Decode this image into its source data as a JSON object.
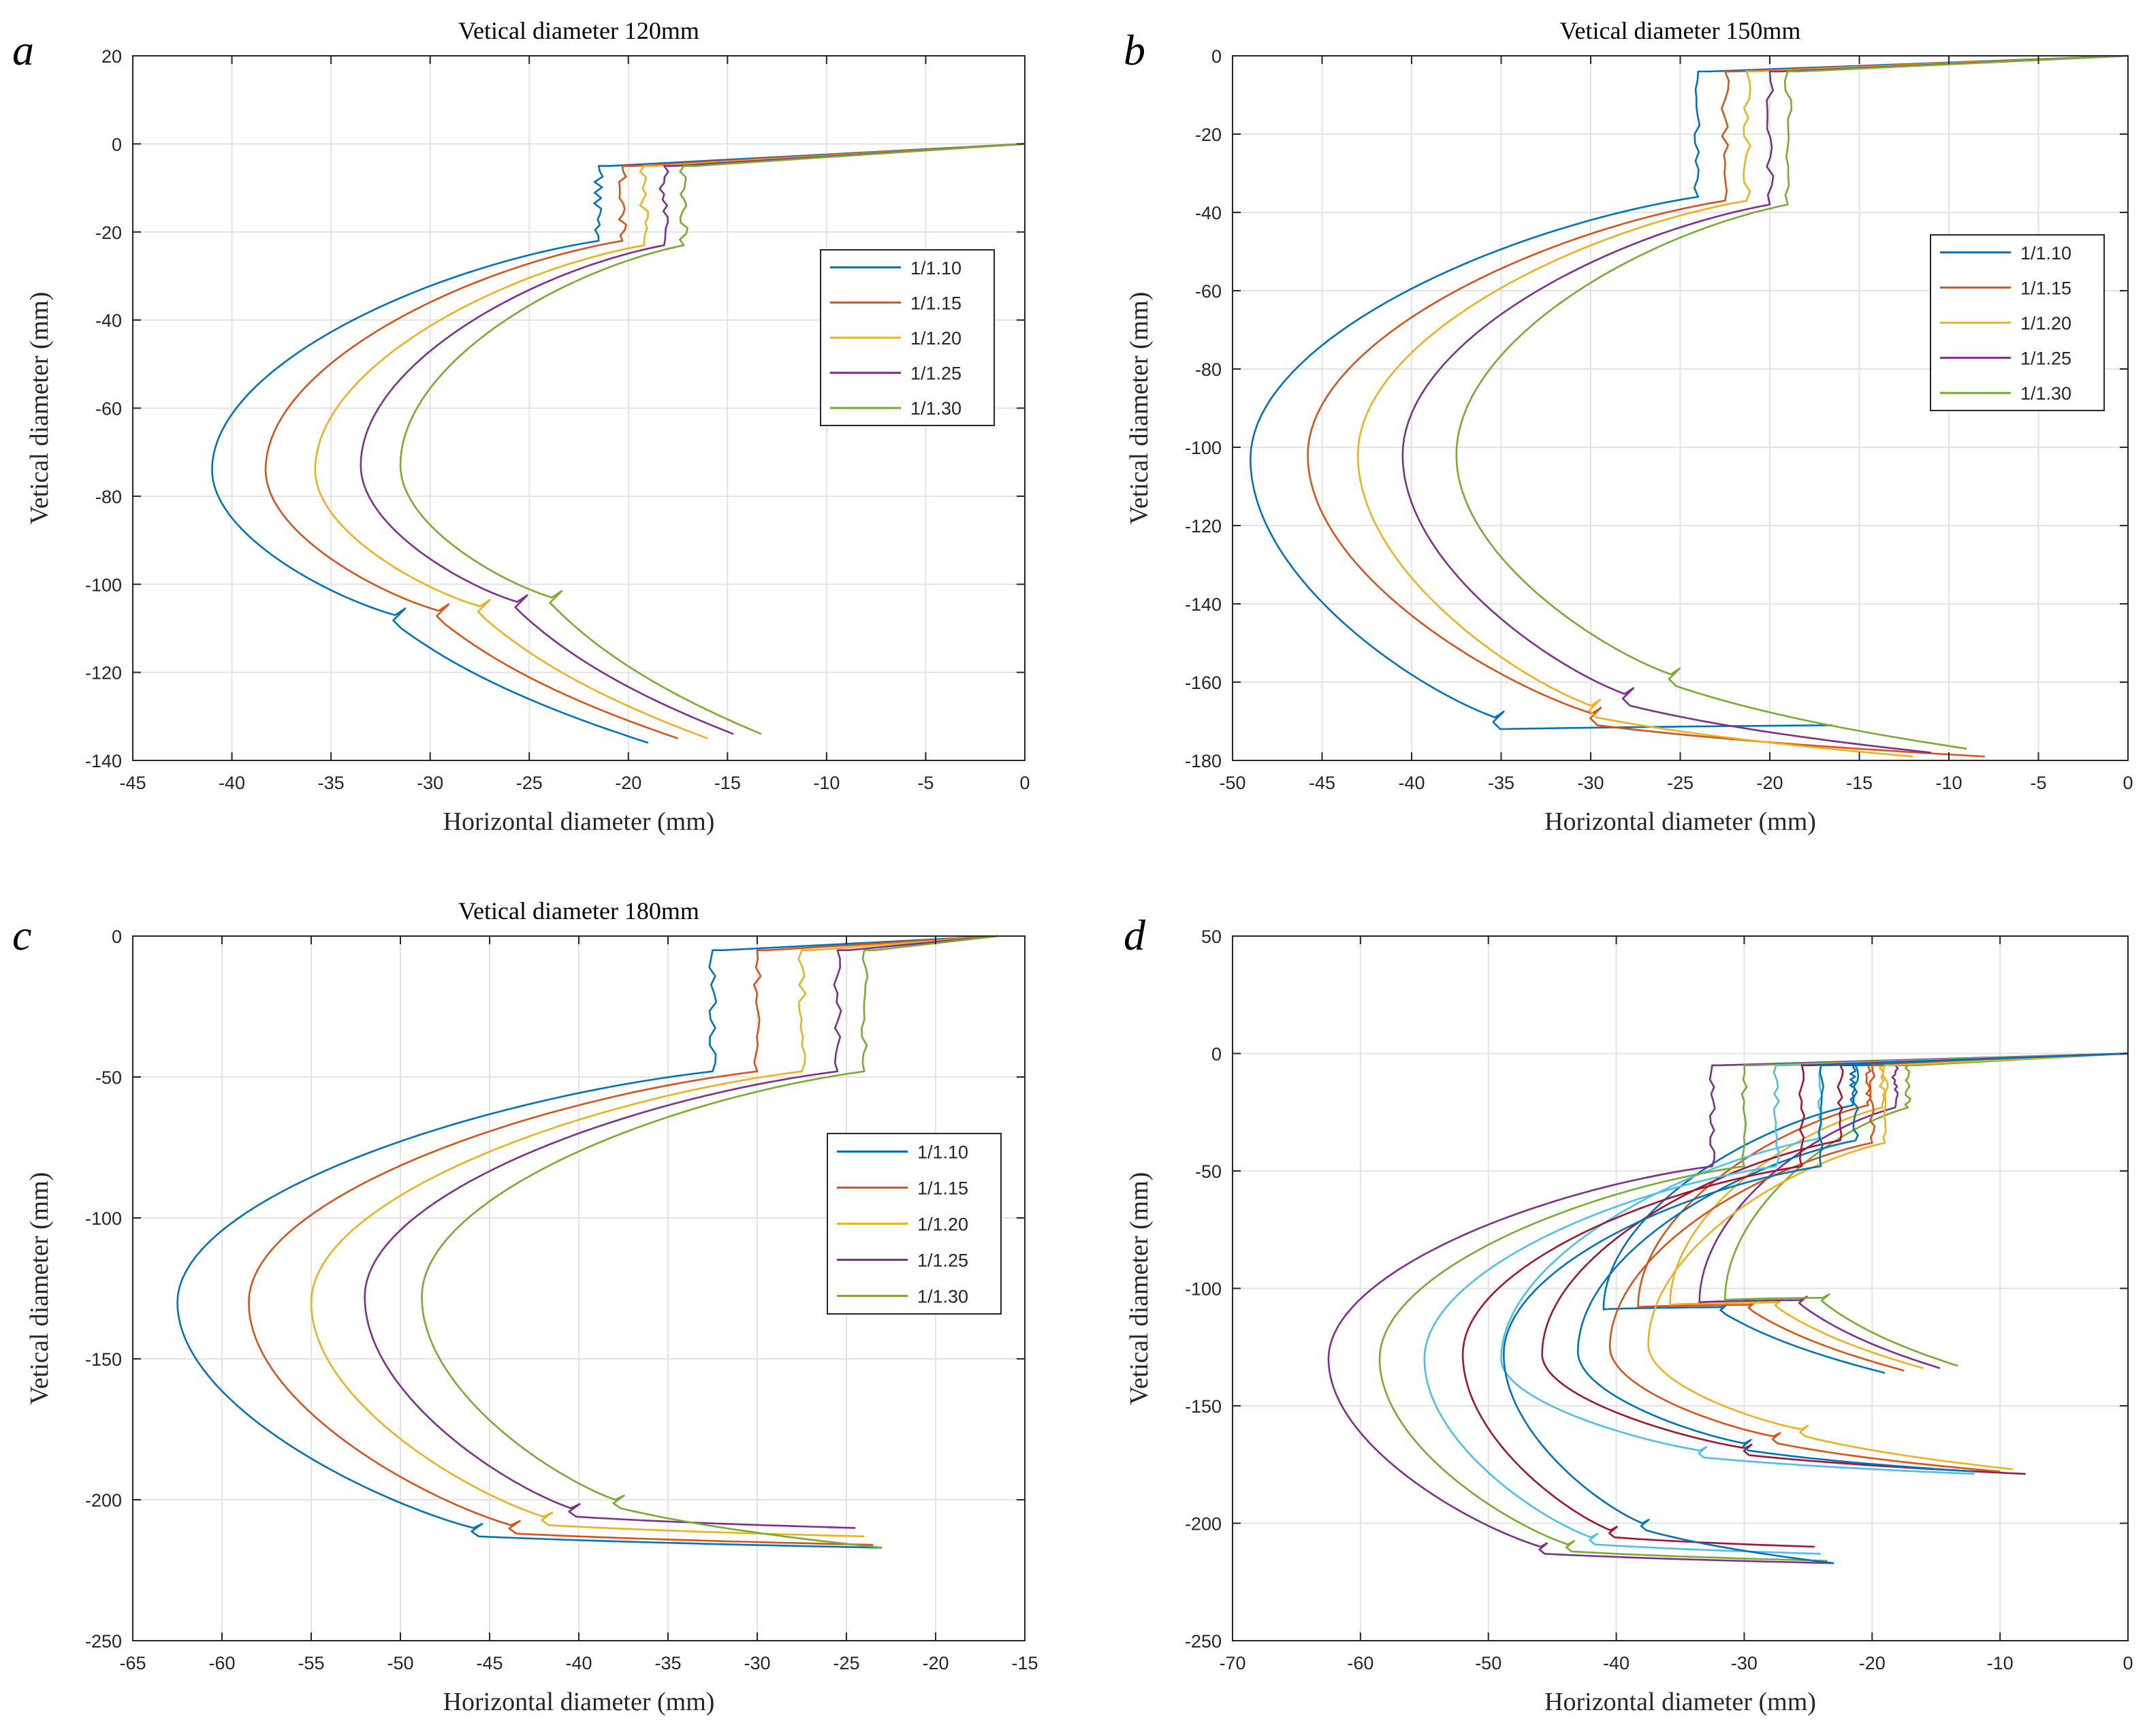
{
  "chart_data": [
    {
      "type": "line",
      "panel_label": "a",
      "title": "Vetical diameter 120mm",
      "xlabel": "Horizontal diameter (mm)",
      "ylabel": "Vetical diameter (mm)",
      "xlim": [
        -45,
        0
      ],
      "ylim": [
        -140,
        20
      ],
      "xticks": [
        -45,
        -40,
        -35,
        -30,
        -25,
        -20,
        -15,
        -10,
        -5,
        0
      ],
      "yticks": [
        -140,
        -120,
        -100,
        -80,
        -60,
        -40,
        -20,
        0,
        20
      ],
      "grid": true,
      "legend_position": "right",
      "series": [
        {
          "name": "1/1.10",
          "color": "#0072BD",
          "shape": {
            "step_x": -21.5,
            "step_top": -5,
            "step_bottom": -22,
            "bulge_x": -41,
            "bulge_y": -74,
            "notch_y": -107,
            "end_x": -19,
            "end_y": -136
          }
        },
        {
          "name": "1/1.15",
          "color": "#D95319",
          "shape": {
            "step_x": -20.3,
            "step_top": -5,
            "step_bottom": -22,
            "bulge_x": -38.3,
            "bulge_y": -74,
            "notch_y": -106,
            "end_x": -17.5,
            "end_y": -135
          }
        },
        {
          "name": "1/1.20",
          "color": "#EDB120",
          "shape": {
            "step_x": -19.2,
            "step_top": -5,
            "step_bottom": -23,
            "bulge_x": -35.8,
            "bulge_y": -74,
            "notch_y": -105,
            "end_x": -16,
            "end_y": -135
          }
        },
        {
          "name": "1/1.25",
          "color": "#7E2F8E",
          "shape": {
            "step_x": -18.2,
            "step_top": -5,
            "step_bottom": -23,
            "bulge_x": -33.5,
            "bulge_y": -73,
            "notch_y": -104,
            "end_x": -14.7,
            "end_y": -134
          }
        },
        {
          "name": "1/1.30",
          "color": "#77AC30",
          "shape": {
            "step_x": -17.2,
            "step_top": -5,
            "step_bottom": -23,
            "bulge_x": -31.5,
            "bulge_y": -73,
            "notch_y": -103,
            "end_x": -13.3,
            "end_y": -134
          }
        }
      ]
    },
    {
      "type": "line",
      "panel_label": "b",
      "title": "Vetical diameter 150mm",
      "xlabel": "Horizontal diameter (mm)",
      "ylabel": "Vetical diameter (mm)",
      "xlim": [
        -50,
        0
      ],
      "ylim": [
        -180,
        0
      ],
      "xticks": [
        -50,
        -45,
        -40,
        -35,
        -30,
        -25,
        -20,
        -15,
        -10,
        -5,
        0
      ],
      "yticks": [
        -180,
        -160,
        -140,
        -120,
        -100,
        -80,
        -60,
        -40,
        -20,
        0
      ],
      "grid": true,
      "legend_position": "right",
      "series": [
        {
          "name": "1/1.10",
          "color": "#0072BD",
          "shape": {
            "step_x": -24,
            "step_top": -4,
            "step_bottom": -36,
            "bulge_x": -49,
            "bulge_y": -103,
            "notch_y": -169,
            "end_x": -16.5,
            "end_y": -171
          }
        },
        {
          "name": "1/1.15",
          "color": "#D95319",
          "shape": {
            "step_x": -22.5,
            "step_top": -4,
            "step_bottom": -37,
            "bulge_x": -45.8,
            "bulge_y": -102,
            "notch_y": -168,
            "end_x": -8,
            "end_y": -179
          }
        },
        {
          "name": "1/1.20",
          "color": "#EDB120",
          "shape": {
            "step_x": -21.3,
            "step_top": -4,
            "step_bottom": -37,
            "bulge_x": -43,
            "bulge_y": -102,
            "notch_y": -166,
            "end_x": -12,
            "end_y": -179
          }
        },
        {
          "name": "1/1.25",
          "color": "#7E2F8E",
          "shape": {
            "step_x": -20,
            "step_top": -4,
            "step_bottom": -38,
            "bulge_x": -40.5,
            "bulge_y": -102,
            "notch_y": -163,
            "end_x": -11,
            "end_y": -178
          }
        },
        {
          "name": "1/1.30",
          "color": "#77AC30",
          "shape": {
            "step_x": -19,
            "step_top": -4,
            "step_bottom": -38,
            "bulge_x": -37.5,
            "bulge_y": -102,
            "notch_y": -158,
            "end_x": -9,
            "end_y": -177
          }
        }
      ]
    },
    {
      "type": "line",
      "panel_label": "c",
      "title": "Vetical diameter 180mm",
      "xlabel": "Horizontal diameter (mm)",
      "ylabel": "Vetical diameter (mm)",
      "xlim": [
        -65,
        -15
      ],
      "ylim": [
        -250,
        0
      ],
      "xticks": [
        -65,
        -60,
        -55,
        -50,
        -45,
        -40,
        -35,
        -30,
        -25,
        -20,
        -15
      ],
      "yticks": [
        -250,
        -200,
        -150,
        -100,
        -50,
        0
      ],
      "grid": true,
      "legend_position": "right",
      "x_origin": -16.5,
      "series": [
        {
          "name": "1/1.10",
          "color": "#0072BD",
          "shape": {
            "step_x": -32.5,
            "step_top": -5,
            "step_bottom": -48,
            "bulge_x": -62.5,
            "bulge_y": -130,
            "notch_y": -210,
            "end_x": -23,
            "end_y": -217
          }
        },
        {
          "name": "1/1.15",
          "color": "#D95319",
          "shape": {
            "step_x": -30,
            "step_top": -5,
            "step_bottom": -48,
            "bulge_x": -58.5,
            "bulge_y": -130,
            "notch_y": -209,
            "end_x": -23.5,
            "end_y": -216
          }
        },
        {
          "name": "1/1.20",
          "color": "#EDB120",
          "shape": {
            "step_x": -27.5,
            "step_top": -5,
            "step_bottom": -48,
            "bulge_x": -55,
            "bulge_y": -130,
            "notch_y": -206,
            "end_x": -24,
            "end_y": -213
          }
        },
        {
          "name": "1/1.25",
          "color": "#7E2F8E",
          "shape": {
            "step_x": -25.5,
            "step_top": -5,
            "step_bottom": -48,
            "bulge_x": -52,
            "bulge_y": -128,
            "notch_y": -203,
            "end_x": -24.5,
            "end_y": -210
          }
        },
        {
          "name": "1/1.30",
          "color": "#77AC30",
          "shape": {
            "step_x": -24,
            "step_top": -5,
            "step_bottom": -48,
            "bulge_x": -48.8,
            "bulge_y": -128,
            "notch_y": -200,
            "end_x": -23,
            "end_y": -217
          }
        }
      ]
    },
    {
      "type": "line",
      "panel_label": "d",
      "title": "",
      "xlabel": "Horizontal diameter (mm)",
      "ylabel": "Vetical diameter (mm)",
      "xlim": [
        -70,
        0
      ],
      "ylim": [
        -250,
        50
      ],
      "xticks": [
        -70,
        -60,
        -50,
        -40,
        -30,
        -20,
        -10,
        0
      ],
      "yticks": [
        -250,
        -200,
        -150,
        -100,
        -50,
        0,
        50
      ],
      "grid": true,
      "series": [
        {
          "name": "",
          "color": "#0072BD",
          "shape": {
            "step_x": -21.5,
            "step_top": -5,
            "step_bottom": -22,
            "bulge_x": -41,
            "bulge_y": -109,
            "notch_y": -108,
            "end_x": -19,
            "end_y": -136
          }
        },
        {
          "name": "",
          "color": "#D95319",
          "shape": {
            "step_x": -20.3,
            "step_top": -5,
            "step_bottom": -22,
            "bulge_x": -38.3,
            "bulge_y": -108,
            "notch_y": -107,
            "end_x": -17.5,
            "end_y": -135
          }
        },
        {
          "name": "",
          "color": "#EDB120",
          "shape": {
            "step_x": -19.2,
            "step_top": -5,
            "step_bottom": -23,
            "bulge_x": -35.8,
            "bulge_y": -107,
            "notch_y": -106,
            "end_x": -16,
            "end_y": -134
          }
        },
        {
          "name": "",
          "color": "#7E2F8E",
          "shape": {
            "step_x": -18.2,
            "step_top": -5,
            "step_bottom": -23,
            "bulge_x": -33.5,
            "bulge_y": -106,
            "notch_y": -105,
            "end_x": -14.7,
            "end_y": -134
          }
        },
        {
          "name": "",
          "color": "#77AC30",
          "shape": {
            "step_x": -17.2,
            "step_top": -5,
            "step_bottom": -23,
            "bulge_x": -31.5,
            "bulge_y": -105,
            "notch_y": -104,
            "end_x": -13.3,
            "end_y": -133
          }
        },
        {
          "name": "",
          "color": "#4DBEEE",
          "shape": {
            "step_x": -24,
            "step_top": -5,
            "step_bottom": -36,
            "bulge_x": -49,
            "bulge_y": -130,
            "notch_y": -169,
            "end_x": -12,
            "end_y": -179
          }
        },
        {
          "name": "",
          "color": "#A2142F",
          "shape": {
            "step_x": -22.5,
            "step_top": -5,
            "step_bottom": -37,
            "bulge_x": -45.8,
            "bulge_y": -128,
            "notch_y": -168,
            "end_x": -8,
            "end_y": -179
          }
        },
        {
          "name": "",
          "color": "#0072BD",
          "shape": {
            "step_x": -21.3,
            "step_top": -5,
            "step_bottom": -37,
            "bulge_x": -43,
            "bulge_y": -127,
            "notch_y": -166,
            "end_x": -12,
            "end_y": -178
          }
        },
        {
          "name": "",
          "color": "#D95319",
          "shape": {
            "step_x": -20,
            "step_top": -5,
            "step_bottom": -38,
            "bulge_x": -40.5,
            "bulge_y": -125,
            "notch_y": -163,
            "end_x": -10,
            "end_y": -178
          }
        },
        {
          "name": "",
          "color": "#EDB120",
          "shape": {
            "step_x": -19,
            "step_top": -5,
            "step_bottom": -38,
            "bulge_x": -37.5,
            "bulge_y": -124,
            "notch_y": -160,
            "end_x": -9,
            "end_y": -177
          }
        },
        {
          "name": "",
          "color": "#7E2F8E",
          "shape": {
            "step_x": -32.5,
            "step_top": -5,
            "step_bottom": -48,
            "bulge_x": -62.5,
            "bulge_y": -130,
            "notch_y": -210,
            "end_x": -23,
            "end_y": -217
          }
        },
        {
          "name": "",
          "color": "#77AC30",
          "shape": {
            "step_x": -30,
            "step_top": -5,
            "step_bottom": -48,
            "bulge_x": -58.5,
            "bulge_y": -130,
            "notch_y": -209,
            "end_x": -23.5,
            "end_y": -216
          }
        },
        {
          "name": "",
          "color": "#4DBEEE",
          "shape": {
            "step_x": -27.5,
            "step_top": -5,
            "step_bottom": -48,
            "bulge_x": -55,
            "bulge_y": -130,
            "notch_y": -206,
            "end_x": -24,
            "end_y": -213
          }
        },
        {
          "name": "",
          "color": "#A2142F",
          "shape": {
            "step_x": -25.5,
            "step_top": -5,
            "step_bottom": -48,
            "bulge_x": -52,
            "bulge_y": -128,
            "notch_y": -203,
            "end_x": -24.5,
            "end_y": -210
          }
        },
        {
          "name": "",
          "color": "#0072BD",
          "shape": {
            "step_x": -24,
            "step_top": -5,
            "step_bottom": -48,
            "bulge_x": -48.8,
            "bulge_y": -128,
            "notch_y": -200,
            "end_x": -23,
            "end_y": -217
          }
        }
      ]
    }
  ]
}
